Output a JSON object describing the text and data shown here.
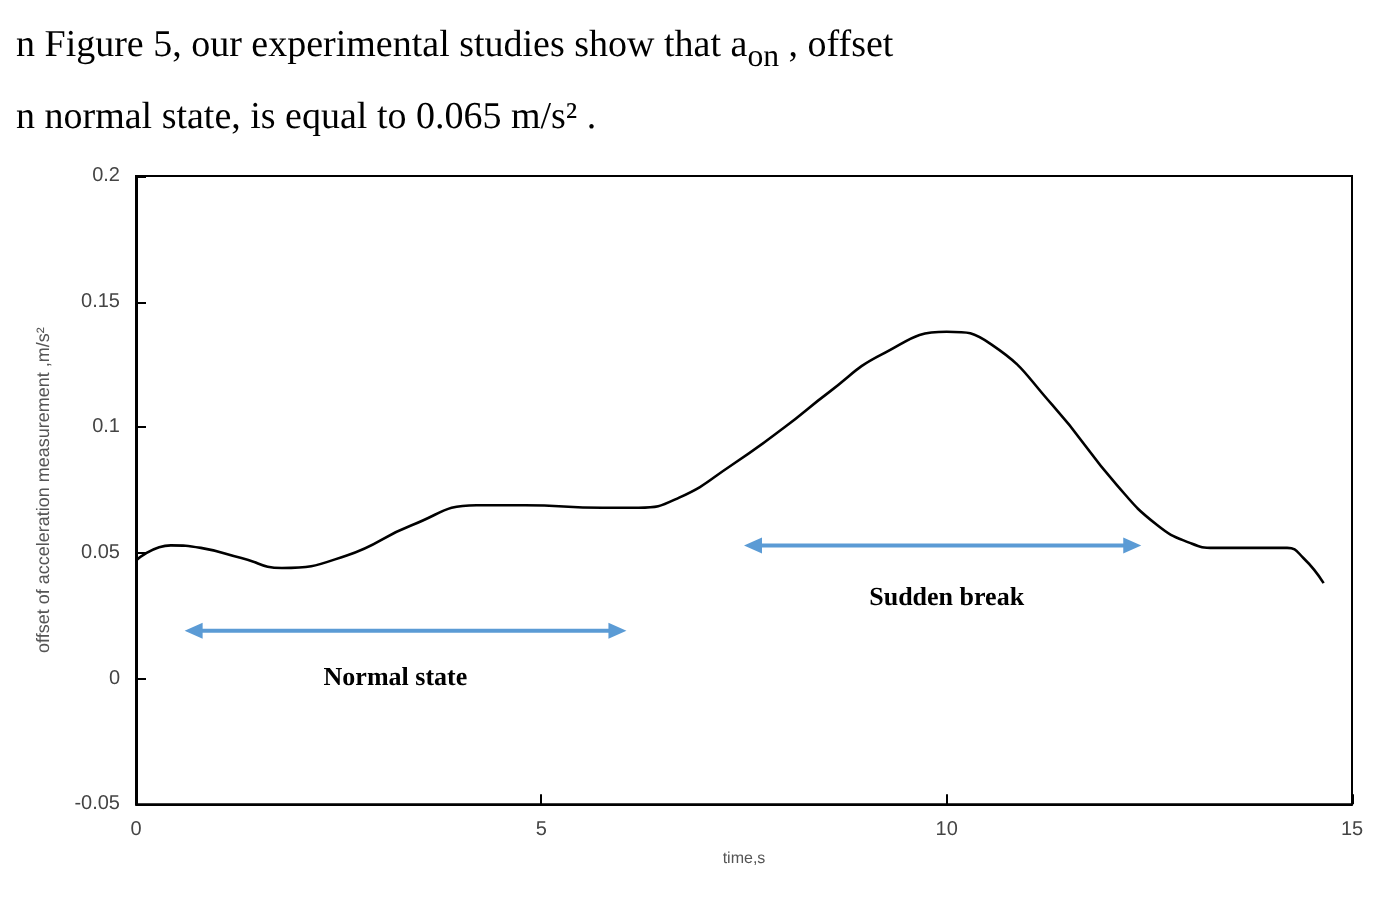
{
  "chart_data": {
    "type": "line",
    "xlabel": "time,s",
    "ylabel": "offset of acceleration measurement ,m/s²",
    "x": [
      0,
      0.43,
      0.8,
      1.3,
      1.8,
      2.6,
      3.4,
      4.2,
      4.8,
      5.75,
      6.2,
      6.7,
      7.35,
      8,
      8.55,
      9.2,
      10,
      10.55,
      11.3,
      12.1,
      12.6,
      13,
      13.3,
      14.2,
      14.4,
      14.65
    ],
    "series": [
      {
        "color": "#000000",
        "values": [
          0.047,
          0.053,
          0.052,
          0.048,
          0.044,
          0.049,
          0.061,
          0.069,
          0.069,
          0.068,
          0.068,
          0.072,
          0.085,
          0.1,
          0.114,
          0.129,
          0.138,
          0.133,
          0.109,
          0.077,
          0.061,
          0.054,
          0.052,
          0.052,
          0.048,
          0.038
        ]
      }
    ],
    "xlim": [
      0,
      15
    ],
    "ylim": [
      -0.05,
      0.2
    ],
    "xticks": [
      0,
      5,
      10,
      15
    ],
    "yticks": [
      -0.05,
      0,
      0.05,
      0.1,
      0.15,
      0.2
    ],
    "grid": false,
    "marker": "none",
    "line_style": "solid",
    "annotations": [
      "n Figure 5, our experimental studies show that a$_{on}$ , offset",
      "n normal state, is equal to 0.065 m/s²  .",
      "Normal state",
      "Sudden break"
    ]
  }
}
